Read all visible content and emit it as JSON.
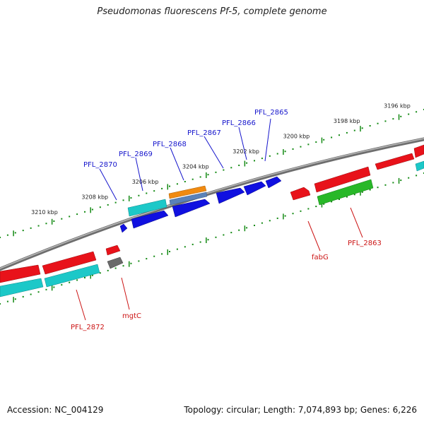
{
  "title": "Pseudomonas fluorescens Pf-5, complete genome",
  "footer": {
    "accession": "Accession: NC_004129",
    "info": "Topology: circular; Length: 7,074,893 bp; Genes: 6,226"
  },
  "colors": {
    "backbone": "#8a8a8a",
    "tick": "#138a13",
    "label_forward": "#1515cc",
    "label_reverse": "#cc1515",
    "red": "#e8121a",
    "cyan": "#1cc8c8",
    "blue": "#1010e0",
    "green": "#28b828",
    "orange": "#f08a10",
    "steel": "#5a82b8",
    "gray": "#6a6a6a"
  },
  "kbp_ticks": [
    {
      "kbp": 3196,
      "label": "3196 kbp"
    },
    {
      "kbp": 3198,
      "label": "3198 kbp"
    },
    {
      "kbp": 3200,
      "label": "3200 kbp"
    },
    {
      "kbp": 3202,
      "label": "3202 kbp"
    },
    {
      "kbp": 3204,
      "label": "3204 kbp"
    },
    {
      "kbp": 3206,
      "label": "3206 kbp"
    },
    {
      "kbp": 3208,
      "label": "3208 kbp"
    },
    {
      "kbp": 3210,
      "label": "3210 kbp"
    }
  ],
  "gene_labels": [
    {
      "text": "PFL_2865",
      "strand": "forward"
    },
    {
      "text": "PFL_2866",
      "strand": "forward"
    },
    {
      "text": "PFL_2867",
      "strand": "forward"
    },
    {
      "text": "PFL_2868",
      "strand": "forward"
    },
    {
      "text": "PFL_2869",
      "strand": "forward"
    },
    {
      "text": "PFL_2870",
      "strand": "forward"
    },
    {
      "text": "fabG",
      "strand": "reverse"
    },
    {
      "text": "PFL_2863",
      "strand": "reverse"
    },
    {
      "text": "mgtC",
      "strand": "reverse"
    },
    {
      "text": "PFL_2872",
      "strand": "reverse"
    }
  ]
}
